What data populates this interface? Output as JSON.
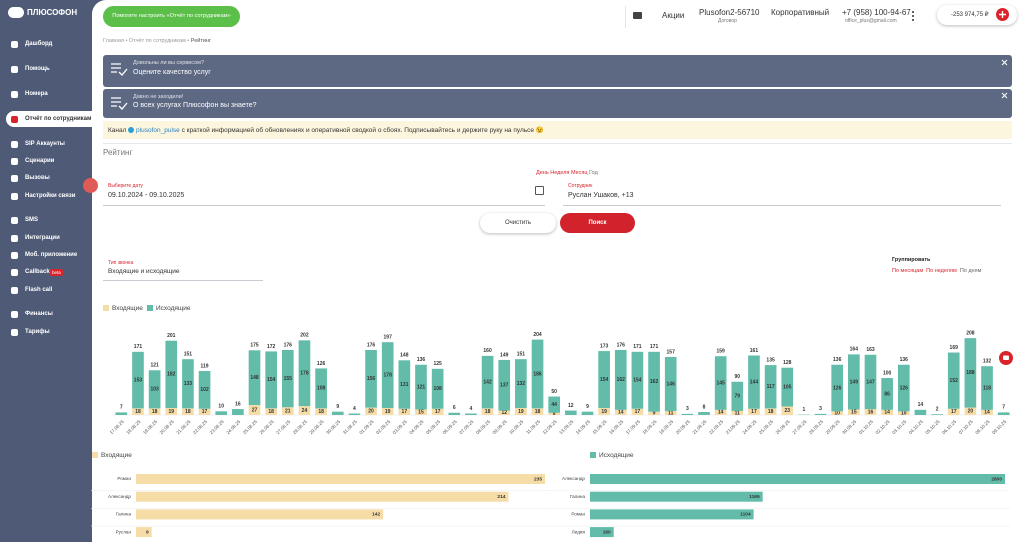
{
  "sidebar": {
    "logo": "ПЛЮСОФОН",
    "items": [
      "Дашборд",
      "Помощь",
      "Номера",
      "Отчёт по сотрудникам",
      "SIP Аккаунты",
      "Сценарии",
      "Вызовы",
      "Настройки связи",
      "SMS",
      "Интеграции",
      "Моб. приложение",
      "Callback",
      "Flash call",
      "Финансы",
      "Тарифы"
    ],
    "badge": "beta"
  },
  "topbar": {
    "help_button": "Помогите настроить «Отчёт по сотрудникам»",
    "promo": "Акции",
    "account": "Plusofon2-56710",
    "account_sub": "Договор",
    "tariff": "Корпоративный",
    "phone": "+7 (958) 100-94-67",
    "email": "office_plus@gmail.com",
    "balance": "-253 974,75 ₽"
  },
  "breadcrumb": [
    "Главная",
    "Отчёт по сотрудникам",
    "Рейтинг"
  ],
  "banners": [
    {
      "title": "Довольны ли вы сервисом?",
      "text": "Оцените качество услуг"
    },
    {
      "title": "Давно не заходили!",
      "text": "О всех услугах Плюсофон вы знаете?"
    }
  ],
  "notice": {
    "before": "Канал",
    "link": "plusofon_pulse",
    "after": "с краткой информацией об обновлениях и оперативной сводкой о сбоях. Подписывайтесь и держите руку на пульсе 😉"
  },
  "page_title": "Рейтинг",
  "periods": [
    "День",
    "Неделя",
    "Месяц",
    "Год"
  ],
  "filters": {
    "date_label": "Выберите дату",
    "date_value": "09.10.2024 - 09.10.2025",
    "employee_label": "Сотрудник",
    "employee_value": "Руслан Ушаков, +13",
    "clear": "Очистить",
    "search": "Поиск",
    "call_type_label": "Тип звонка",
    "call_type_value": "Входящие и исходящие",
    "group_label": "Группировать",
    "group_options": [
      "По месяцам",
      "По неделям",
      "По дням"
    ]
  },
  "chart_data": [
    {
      "type": "stacked-bar",
      "ylim": [
        0,
        230
      ],
      "categories": [
        "17.08.25",
        "18.08.25",
        "19.08.25",
        "20.08.25",
        "21.08.25",
        "22.08.25",
        "23.08.25",
        "24.08.25",
        "25.08.25",
        "26.08.25",
        "27.08.25",
        "28.08.25",
        "29.08.25",
        "30.08.25",
        "31.08.25",
        "01.09.25",
        "02.09.25",
        "03.09.25",
        "04.09.25",
        "05.09.25",
        "06.09.25",
        "07.09.25",
        "08.09.25",
        "09.09.25",
        "10.09.25",
        "11.09.25",
        "12.09.25",
        "13.09.25",
        "14.09.25",
        "15.09.25",
        "16.09.25",
        "17.09.25",
        "18.09.25",
        "19.09.25",
        "20.09.25",
        "21.09.25",
        "22.09.25",
        "23.09.25",
        "24.09.25",
        "25.09.25",
        "26.09.25",
        "27.09.25",
        "28.09.25",
        "29.09.25",
        "30.09.25",
        "01.10.25",
        "02.10.25",
        "03.10.25",
        "04.10.25",
        "05.10.25",
        "06.10.25",
        "07.10.25",
        "08.10.25",
        "09.10.25"
      ],
      "series": [
        {
          "name": "Входящие",
          "color": "#f6dca6",
          "values": [
            0,
            18,
            18,
            19,
            18,
            17,
            0,
            0,
            27,
            18,
            21,
            24,
            18,
            0,
            0,
            20,
            19,
            17,
            15,
            17,
            0,
            0,
            18,
            12,
            19,
            18,
            6,
            0,
            0,
            19,
            14,
            17,
            9,
            11,
            0,
            0,
            14,
            11,
            17,
            18,
            23,
            0,
            0,
            10,
            15,
            16,
            14,
            10,
            0,
            0,
            17,
            20,
            14,
            0
          ]
        },
        {
          "name": "Исходящие",
          "color": "#62bca9",
          "values": [
            7,
            153,
            103,
            182,
            133,
            102,
            10,
            16,
            148,
            154,
            155,
            178,
            108,
            9,
            4,
            156,
            178,
            131,
            121,
            108,
            6,
            4,
            142,
            137,
            132,
            186,
            44,
            12,
            9,
            154,
            162,
            154,
            162,
            146,
            3,
            8,
            145,
            79,
            144,
            117,
            105,
            1,
            3,
            126,
            149,
            147,
            86,
            126,
            14,
            2,
            152,
            188,
            118,
            7
          ]
        }
      ],
      "totals": [
        7,
        171,
        121,
        201,
        151,
        119,
        10,
        16,
        175,
        172,
        176,
        202,
        126,
        9,
        4,
        176,
        197,
        148,
        136,
        125,
        6,
        4,
        160,
        149,
        151,
        204,
        50,
        12,
        9,
        173,
        176,
        171,
        171,
        157,
        3,
        8,
        159,
        90,
        161,
        135,
        128,
        1,
        3,
        136,
        164,
        163,
        100,
        136,
        14,
        2,
        169,
        208,
        132,
        7
      ]
    },
    {
      "type": "hbar",
      "categories": [
        "Роман",
        "Александр",
        "Галина",
        "Руслан"
      ],
      "xlim": [
        0,
        235
      ],
      "series": [
        {
          "name": "Входящие",
          "color": "#f6dca6",
          "values": [
            235,
            214,
            142,
            9
          ]
        }
      ]
    },
    {
      "type": "hbar",
      "categories": [
        "Александр",
        "Галина",
        "Роман",
        "Лидия"
      ],
      "xlim": [
        0,
        2800
      ],
      "series": [
        {
          "name": "Исходящие",
          "color": "#62bca9",
          "values": [
            2800,
            1165,
            1104,
            160
          ]
        }
      ]
    }
  ]
}
